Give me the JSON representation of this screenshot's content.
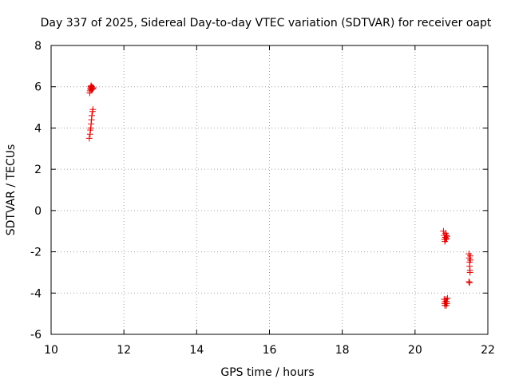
{
  "chart_data": {
    "type": "scatter",
    "title": "Day 337 of 2025, Sidereal Day-to-day VTEC variation (SDTVAR) for receiver oapt",
    "xlabel": "GPS time / hours",
    "ylabel": "SDTVAR / TECUs",
    "xlim": [
      10,
      22
    ],
    "ylim": [
      -6,
      8
    ],
    "xticks": [
      "10",
      "12",
      "14",
      "16",
      "18",
      "20",
      "22"
    ],
    "yticks": [
      "8",
      "6",
      "4",
      "2",
      "0",
      "-2",
      "-4",
      "-6"
    ],
    "grid": true,
    "marker": "plus",
    "color": "#e00000",
    "series": [
      {
        "points": [
          [
            11.05,
            3.5
          ],
          [
            11.07,
            3.7
          ],
          [
            11.08,
            3.9
          ],
          [
            11.09,
            4.0
          ],
          [
            11.1,
            4.2
          ],
          [
            11.11,
            4.4
          ],
          [
            11.12,
            4.6
          ],
          [
            11.14,
            4.8
          ],
          [
            11.15,
            4.9
          ],
          [
            11.06,
            5.7
          ],
          [
            11.07,
            5.8
          ],
          [
            11.08,
            5.9
          ],
          [
            11.09,
            6.0
          ],
          [
            11.1,
            5.95
          ],
          [
            11.11,
            5.85
          ],
          [
            11.12,
            6.0
          ],
          [
            11.13,
            5.9
          ],
          [
            11.14,
            5.95
          ],
          [
            11.15,
            5.9
          ],
          [
            11.16,
            5.95
          ],
          [
            11.1,
            6.05
          ],
          [
            20.78,
            -1.0
          ],
          [
            20.8,
            -1.2
          ],
          [
            20.81,
            -1.4
          ],
          [
            20.82,
            -1.5
          ],
          [
            20.83,
            -1.3
          ],
          [
            20.84,
            -1.1
          ],
          [
            20.85,
            -1.4
          ],
          [
            20.86,
            -1.2
          ],
          [
            20.87,
            -1.35
          ],
          [
            20.88,
            -1.25
          ],
          [
            20.8,
            -4.3
          ],
          [
            20.81,
            -4.5
          ],
          [
            20.82,
            -4.6
          ],
          [
            20.83,
            -4.4
          ],
          [
            20.84,
            -4.5
          ],
          [
            20.85,
            -4.3
          ],
          [
            20.86,
            -4.6
          ],
          [
            20.87,
            -4.4
          ],
          [
            20.88,
            -4.5
          ],
          [
            20.89,
            -4.25
          ],
          [
            21.48,
            -2.1
          ],
          [
            21.49,
            -2.3
          ],
          [
            21.5,
            -2.5
          ],
          [
            21.5,
            -2.7
          ],
          [
            21.51,
            -2.9
          ],
          [
            21.51,
            -3.0
          ],
          [
            21.52,
            -2.4
          ],
          [
            21.52,
            -2.2
          ],
          [
            21.48,
            -3.45
          ],
          [
            21.5,
            -3.5
          ]
        ]
      }
    ]
  }
}
